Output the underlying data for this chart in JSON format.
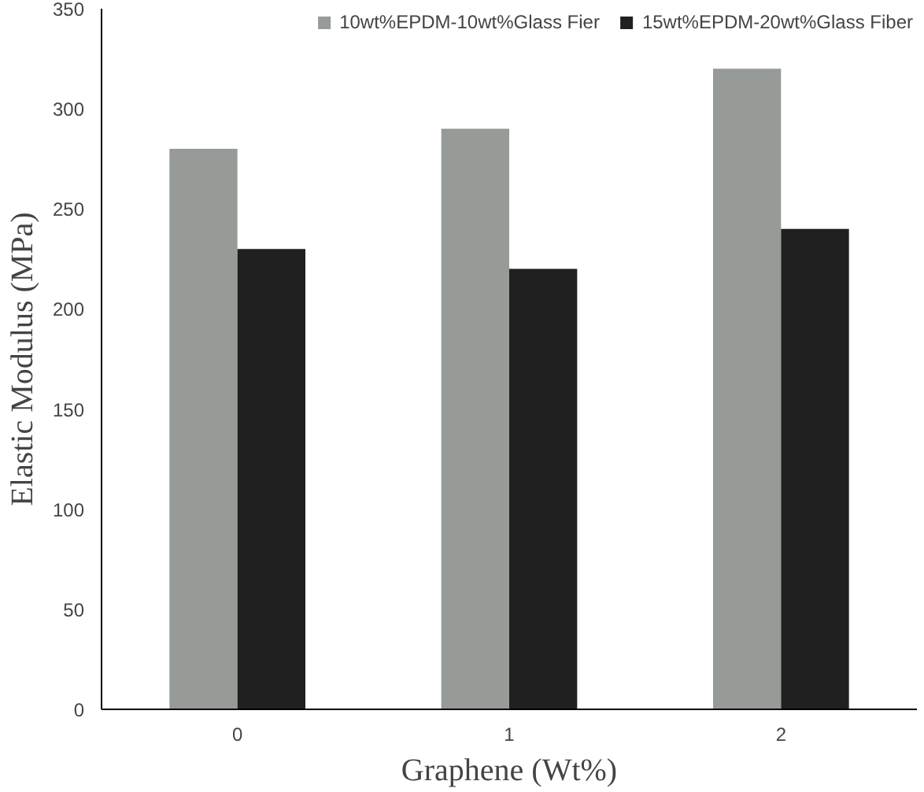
{
  "chart_data": {
    "type": "bar",
    "xlabel": "Graphene (Wt%)",
    "ylabel": "Elastic Modulus (MPa)",
    "categories": [
      "0",
      "1",
      "2"
    ],
    "series": [
      {
        "name": "10wt%EPDM-10wt%Glass Fier",
        "color": "#979b98",
        "values": [
          280,
          290,
          320
        ]
      },
      {
        "name": "15wt%EPDM-20wt%Glass Fiber",
        "color": "#202020",
        "values": [
          230,
          220,
          240
        ]
      }
    ],
    "ylim": [
      0,
      350
    ],
    "yticks": [
      0,
      50,
      100,
      150,
      200,
      250,
      300,
      350
    ],
    "grid": false,
    "legend": "top"
  }
}
